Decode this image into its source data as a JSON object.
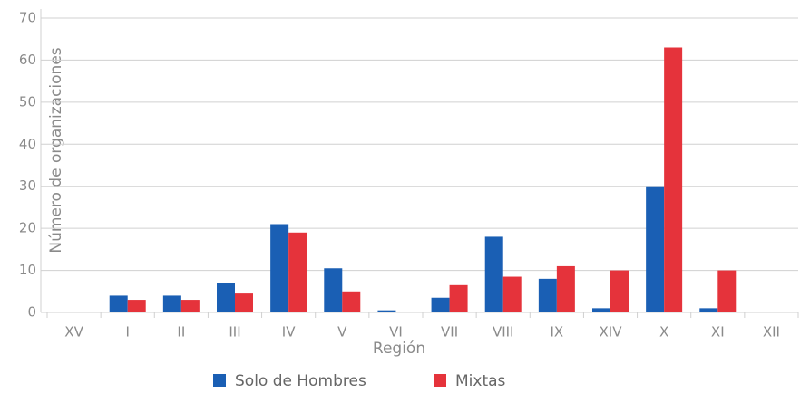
{
  "chart_data": {
    "type": "bar",
    "categories": [
      "XV",
      "I",
      "II",
      "III",
      "IV",
      "V",
      "VI",
      "VII",
      "VIII",
      "IX",
      "XIV",
      "X",
      "XI",
      "XII"
    ],
    "series": [
      {
        "name": "Solo de Hombres",
        "color": "#1a5fb4",
        "values": [
          0,
          4,
          4,
          7,
          21,
          10.5,
          0.5,
          3.5,
          18,
          8,
          1,
          30,
          1,
          0
        ]
      },
      {
        "name": "Mixtas",
        "color": "#e5333b",
        "values": [
          0,
          3,
          3,
          4.5,
          19,
          5,
          0,
          6.5,
          8.5,
          11,
          10,
          63,
          10,
          0
        ]
      }
    ],
    "xlabel": "Región",
    "ylabel": "Número de organizaciones",
    "ylim": [
      0,
      70
    ],
    "yticks": [
      0,
      10,
      20,
      30,
      40,
      50,
      60,
      70
    ],
    "grid": true,
    "legend": "bottom"
  }
}
